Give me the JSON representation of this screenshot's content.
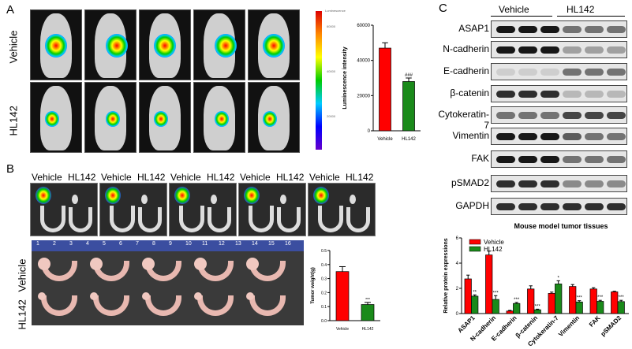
{
  "panels": {
    "a": "A",
    "b": "B",
    "c": "C"
  },
  "groups": {
    "vehicle": "Vehicle",
    "hl142": "HL142"
  },
  "colorbar": {
    "title": "Luminescence",
    "ticks": [
      "60000",
      "40000",
      "20000"
    ]
  },
  "ruler_numbers": [
    "1",
    "2",
    "3",
    "4",
    "5",
    "6",
    "7",
    "8",
    "9",
    "10",
    "11",
    "12",
    "13",
    "14",
    "15",
    "16"
  ],
  "blot": {
    "header": [
      "Vehicle",
      "HL142"
    ],
    "rows": [
      "ASAP1",
      "N-cadherin",
      "E-cadherin",
      "β-catenin",
      "Cytokeratin-7",
      "Vimentin",
      "FAK",
      "pSMAD2",
      "GAPDH"
    ]
  },
  "colors": {
    "vehicle": "#ff0000",
    "hl142": "#1a8a1a"
  },
  "chart_data": [
    {
      "type": "bar",
      "ylabel": "Luminescence intensity",
      "categories": [
        "Vehicle",
        "HL142"
      ],
      "values": [
        47000,
        28000
      ],
      "errors": [
        3000,
        2000
      ],
      "ylim": [
        0,
        60000
      ],
      "yticks": [
        "0",
        "20000",
        "40000",
        "60000"
      ],
      "annotations": [
        "",
        "###"
      ]
    },
    {
      "type": "bar",
      "ylabel": "Tumor weight(g)",
      "categories": [
        "Vehicle",
        "HL142"
      ],
      "values": [
        0.35,
        0.115
      ],
      "errors": [
        0.035,
        0.015
      ],
      "ylim": [
        0,
        0.5
      ],
      "yticks": [
        "0.0",
        "0.1",
        "0.2",
        "0.3",
        "0.4",
        "0.5"
      ],
      "annotations": [
        "",
        "***"
      ]
    },
    {
      "type": "bar",
      "title": "Mouse model tumor tissues",
      "ylabel": "Relative protein expressions",
      "categories": [
        "ASAP1",
        "N-cadherin",
        "E-cadherin",
        "β-catenin",
        "Cytokeratin-7",
        "Vimentin",
        "FAK",
        "pSMAD2"
      ],
      "ylim": [
        0,
        6
      ],
      "yticks": [
        "0",
        "2",
        "4",
        "6"
      ],
      "legend": "top-left",
      "series": [
        {
          "name": "Vehicle",
          "values": [
            2.75,
            4.65,
            0.2,
            1.95,
            1.6,
            2.15,
            1.95,
            1.72
          ],
          "errors": [
            0.3,
            0.3,
            0.05,
            0.25,
            0.1,
            0.15,
            0.1,
            0.05
          ]
        },
        {
          "name": "HL142",
          "values": [
            1.38,
            1.12,
            0.8,
            0.3,
            2.35,
            0.92,
            0.97,
            0.95
          ],
          "errors": [
            0.1,
            0.3,
            0.08,
            0.05,
            0.25,
            0.1,
            0.08,
            0.1
          ]
        }
      ],
      "annotations": [
        "**",
        "***",
        "***",
        "***",
        "*",
        "***",
        "***",
        "***"
      ]
    }
  ]
}
